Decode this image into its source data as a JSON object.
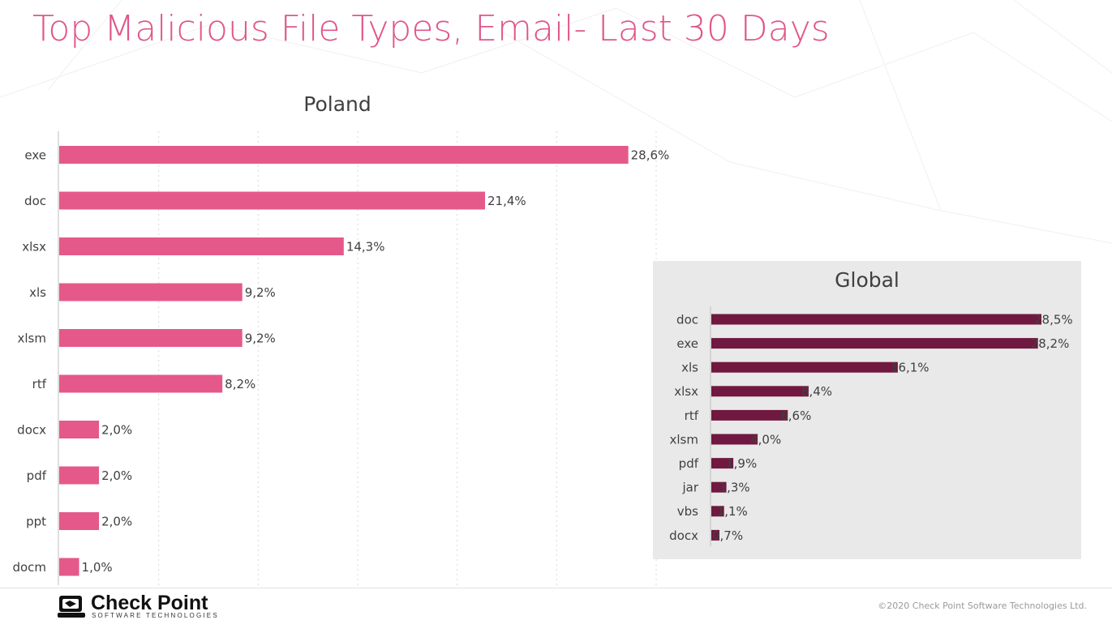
{
  "slide": {
    "title": "Top Malicious File Types, Email- Last 30 Days",
    "copyright": "©2020 Check Point Software Technologies Ltd.",
    "logo_name": "Check Point",
    "logo_tagline": "SOFTWARE TECHNOLOGIES"
  },
  "colors": {
    "title": "#e0568a",
    "poland_bar": "#e5598a",
    "global_bar": "#701840",
    "global_panel_bg": "#e8e9e8",
    "text": "#404040"
  },
  "chart_data": [
    {
      "type": "bar",
      "orientation": "horizontal",
      "title": "Poland",
      "categories": [
        "exe",
        "doc",
        "xlsx",
        "xls",
        "xlsm",
        "rtf",
        "docx",
        "pdf",
        "ppt",
        "docm"
      ],
      "values": [
        28.6,
        21.4,
        14.3,
        9.2,
        9.2,
        8.2,
        2.0,
        2.0,
        2.0,
        1.0
      ],
      "labels": [
        "28,6%",
        "21,4%",
        "14,3%",
        "9,2%",
        "9,2%",
        "8,2%",
        "2,0%",
        "2,0%",
        "2,0%",
        "1,0%"
      ],
      "xlim": [
        0,
        30
      ],
      "grid": true
    },
    {
      "type": "bar",
      "orientation": "horizontal",
      "title": "Global",
      "categories": [
        "doc",
        "exe",
        "xls",
        "xlsx",
        "rtf",
        "xlsm",
        "pdf",
        "jar",
        "vbs",
        "docx"
      ],
      "values": [
        28.5,
        28.2,
        16.1,
        8.4,
        6.6,
        4.0,
        1.9,
        1.3,
        1.1,
        0.7
      ],
      "labels": [
        "28,5%",
        "28,2%",
        "16,1%",
        "8,4%",
        "6,6%",
        "4,0%",
        "1,9%",
        "1,3%",
        "1,1%",
        "0,7%"
      ],
      "xlim": [
        0,
        28.5
      ],
      "grid": false
    }
  ]
}
